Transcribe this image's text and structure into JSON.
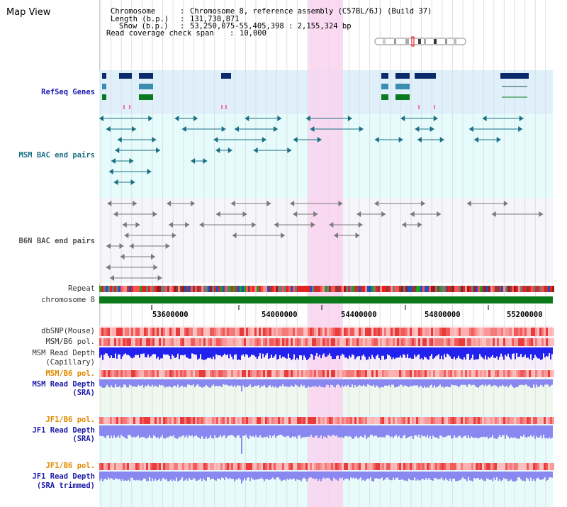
{
  "title": "Map View",
  "info": {
    "chromosome_key": "Chromosome",
    "chromosome_val": "Chromosome 8, reference assembly (C57BL/6J) (Build 37)",
    "length_key": "Length (b.p.)",
    "length_val": "131,738,871",
    "show_key": "Show (b.p.)",
    "show_val": "53,250,075-55,405,398 : 2,155,324 bp",
    "span_key": "Read coverage check span",
    "span_val": "10,000"
  },
  "tracks": {
    "refseq": "RefSeq Genes",
    "msm_bac": "MSM BAC end pairs",
    "b6n_bac": "B6N BAC end pairs",
    "repeat": "Repeat",
    "chromosome": "chromosome 8",
    "dbsnp": "dbSNP(Mouse)",
    "msm_b6_pol_1": "MSM/B6 pol.",
    "msm_depth_cap_1": "MSM Read Depth",
    "msm_depth_cap_2": "(Capillary)",
    "msm_b6_pol_2": "MSM/B6 pol.",
    "msm_depth_sra_1": "MSM Read Depth",
    "msm_depth_sra_2": "(SRA)",
    "jf1_b6_pol_1": "JF1/B6 pol.",
    "jf1_depth_sra_1": "JF1 Read Depth",
    "jf1_depth_sra_2": "(SRA)",
    "jf1_b6_pol_2": "JF1/B6 pol.",
    "jf1_depth_trim_1": "JF1 Read Depth",
    "jf1_depth_trim_2": "(SRA trimmed)"
  },
  "axis": {
    "ticks": [
      "53600000",
      "54000000",
      "54400000",
      "54800000",
      "55200000"
    ]
  },
  "colors": {
    "highlight": "#f9d3ee",
    "refseq_band": "#dff0fa",
    "msm_band": "#e6fbfb",
    "b6n_band": "#f5f5fa",
    "lower_band": "#e8fbfb",
    "gene_dark": "#0b2a6b",
    "gene_mid": "#3a8db0",
    "gene_green": "#0a7a1e",
    "bac_teal": "#1a6f84",
    "bac_grey": "#7a7a7a",
    "chrom_green": "#0a7a1a",
    "depth_blue": "#2222ee",
    "depth_lav": "#8888f0"
  }
}
